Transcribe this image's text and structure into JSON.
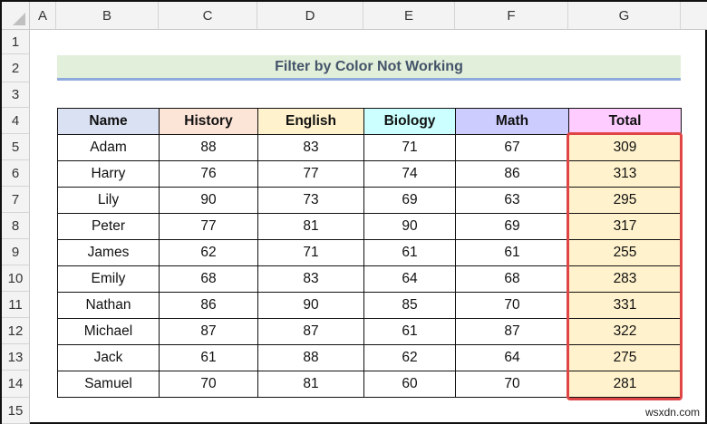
{
  "columns": [
    "A",
    "B",
    "C",
    "D",
    "E",
    "F",
    "G"
  ],
  "rows": [
    "1",
    "2",
    "3",
    "4",
    "5",
    "6",
    "7",
    "8",
    "9",
    "10",
    "11",
    "12",
    "13",
    "14",
    "15"
  ],
  "title": "Filter by Color Not Working",
  "table": {
    "headers": [
      "Name",
      "History",
      "English",
      "Biology",
      "Math",
      "Total"
    ],
    "header_colors": [
      "#d9e1f2",
      "#fce4d6",
      "#fff2cc",
      "#ccffff",
      "#ccccff",
      "#ffccff"
    ],
    "total_fill": "#fff2cc",
    "highlight_border": "#e04545",
    "rows": [
      [
        "Adam",
        "88",
        "83",
        "71",
        "67",
        "309"
      ],
      [
        "Harry",
        "76",
        "77",
        "74",
        "86",
        "313"
      ],
      [
        "Lily",
        "90",
        "73",
        "69",
        "63",
        "295"
      ],
      [
        "Peter",
        "77",
        "81",
        "90",
        "69",
        "317"
      ],
      [
        "James",
        "62",
        "71",
        "61",
        "61",
        "255"
      ],
      [
        "Emily",
        "68",
        "83",
        "64",
        "68",
        "283"
      ],
      [
        "Nathan",
        "86",
        "90",
        "85",
        "70",
        "331"
      ],
      [
        "Michael",
        "87",
        "87",
        "61",
        "87",
        "322"
      ],
      [
        "Jack",
        "61",
        "88",
        "62",
        "64",
        "275"
      ],
      [
        "Samuel",
        "70",
        "81",
        "60",
        "70",
        "281"
      ]
    ]
  },
  "watermark": "wsxdn.com"
}
